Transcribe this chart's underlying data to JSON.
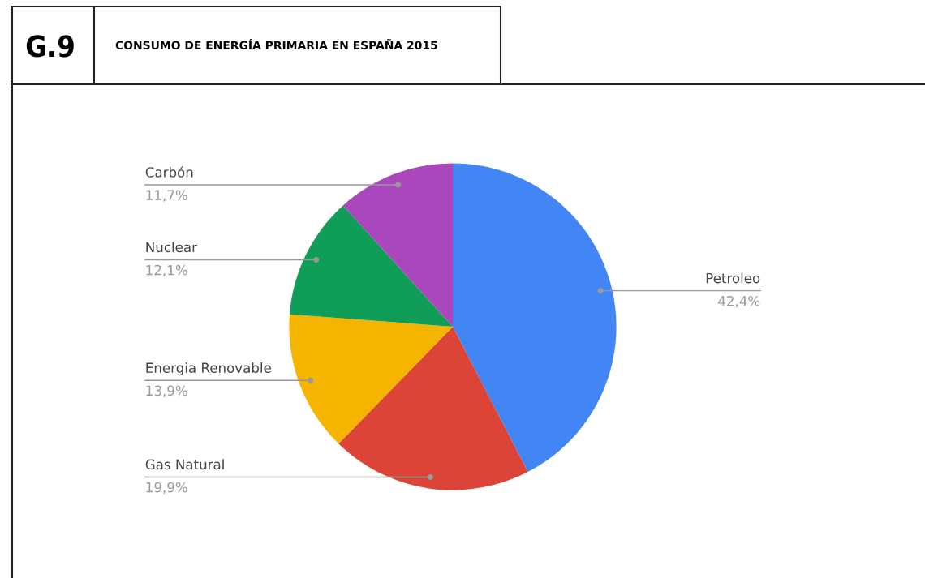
{
  "chart_data": {
    "type": "pie",
    "title": "CONSUMO DE ENERGÍA PRIMARIA EN ESPAÑA 2015",
    "annotations": [
      "G.9"
    ],
    "categories": [
      "Petroleo",
      "Gas Natural",
      "Energia Renovable",
      "Nuclear",
      "Carbón"
    ],
    "values": [
      42.4,
      19.9,
      13.9,
      12.1,
      11.7
    ],
    "colors": [
      "#4285f4",
      "#db4437",
      "#f4b400",
      "#0f9d58",
      "#ab47bc"
    ],
    "value_labels": [
      "42,4%",
      "19,9%",
      "13,9%",
      "12,1%",
      "11,7%"
    ]
  }
}
